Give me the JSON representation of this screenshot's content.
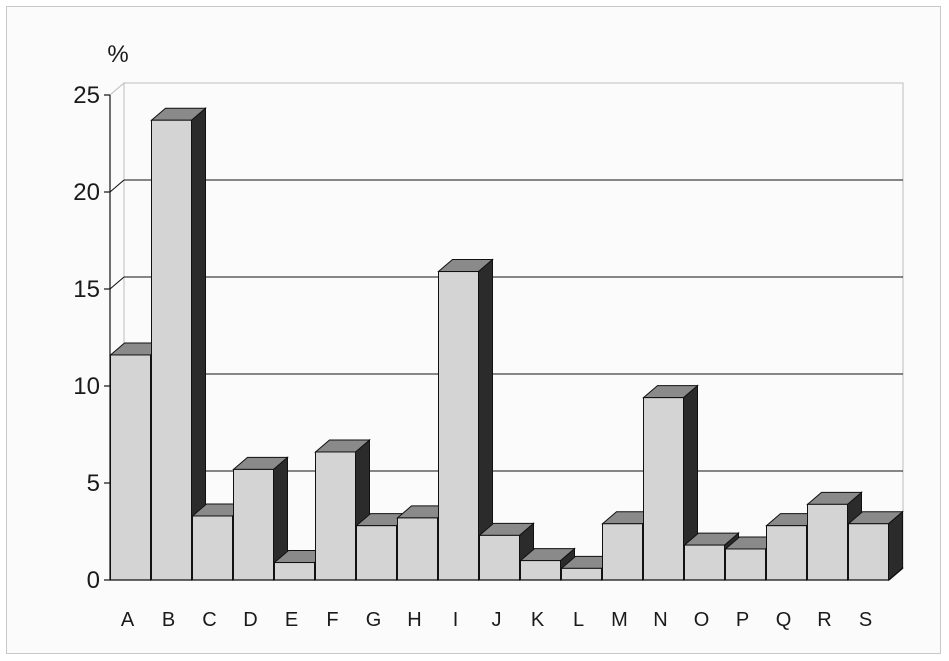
{
  "colors": {
    "bar_front": "#d4d4d4",
    "bar_top": "#8a8a8a",
    "bar_side": "#2b2b2b",
    "grid": "#111111",
    "wall": "#bdbdbd",
    "floor": "#aaaaaa"
  },
  "chart_data": {
    "type": "bar",
    "style": "3d-column",
    "unit_label": "%",
    "ylim": [
      0,
      25
    ],
    "yticks": [
      0,
      5,
      10,
      15,
      20,
      25
    ],
    "ytick_labels": [
      "0",
      "5",
      "10",
      "15",
      "20",
      "25"
    ],
    "grid": true,
    "categories": [
      "A",
      "B",
      "C",
      "D",
      "E",
      "F",
      "G",
      "H",
      "I",
      "J",
      "K",
      "L",
      "M",
      "N",
      "O",
      "P",
      "Q",
      "R",
      "S"
    ],
    "values": [
      11.6,
      23.7,
      3.3,
      5.7,
      0.9,
      6.6,
      2.8,
      3.2,
      15.9,
      2.3,
      1.0,
      0.6,
      2.9,
      9.4,
      1.8,
      1.6,
      2.8,
      3.9,
      2.9
    ]
  }
}
